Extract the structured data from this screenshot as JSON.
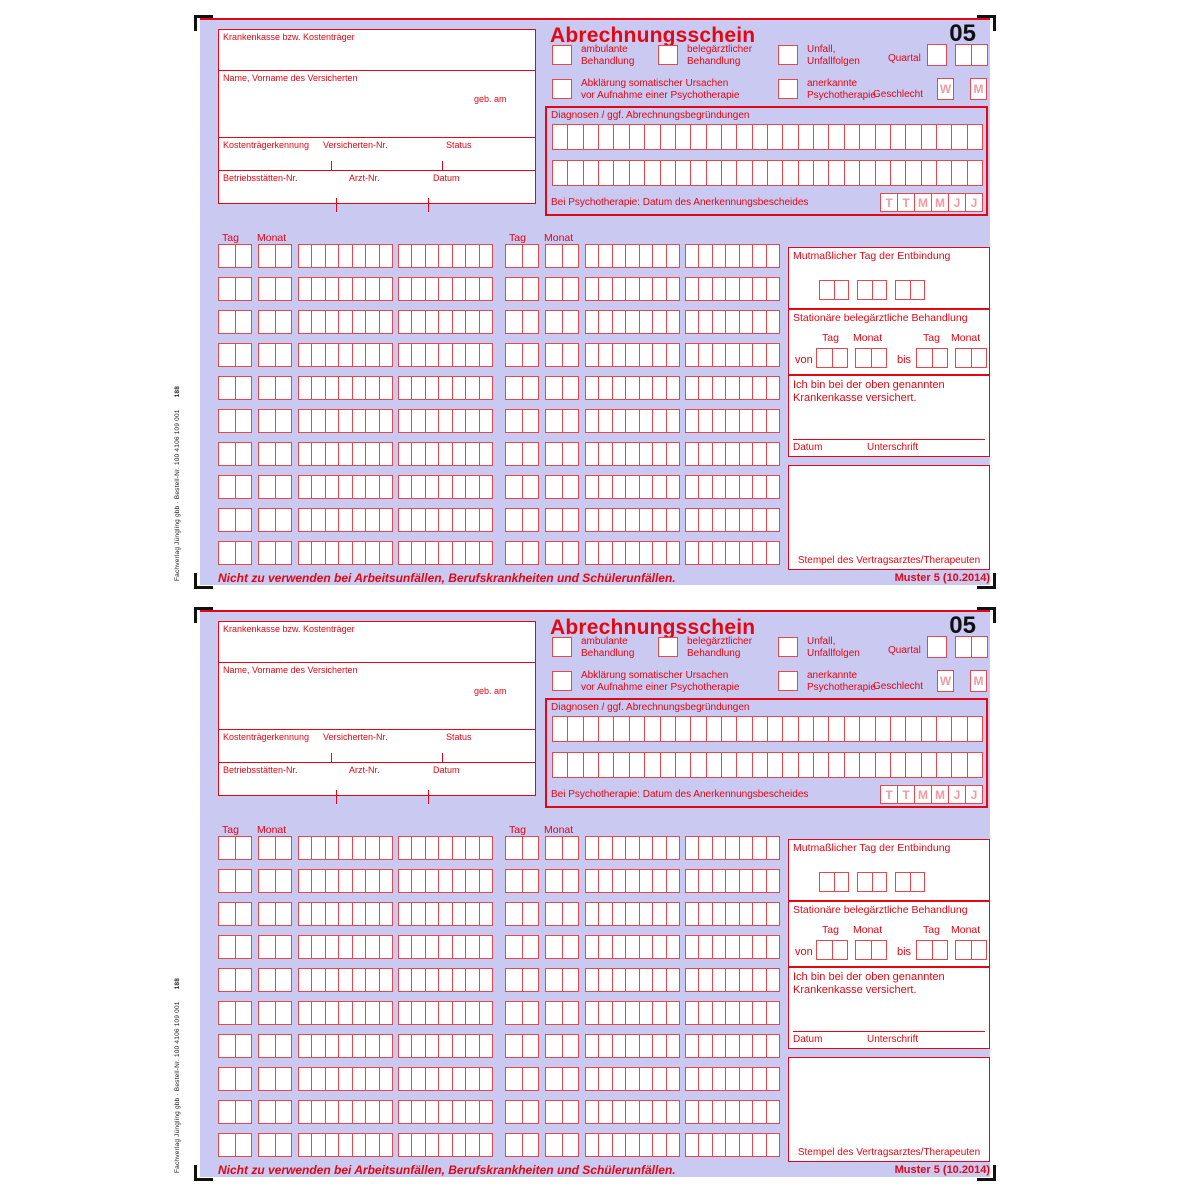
{
  "copies": 2,
  "colors": {
    "accent_red": "#e30613",
    "form_background": "#c9c9f1",
    "mark_black": "#111111",
    "field_white": "#ffffff",
    "pale_letter": "#f29aa2"
  },
  "side": {
    "publisher": "Fachverlag Jüngling gbb · Bestell-Nr. 100 4106 109 001",
    "code": "188"
  },
  "form": {
    "title": "Abrechnungsschein",
    "number": "05",
    "payer_box": {
      "label": "Krankenkasse bzw. Kostenträger"
    },
    "insured_box": {
      "label": "Name, Vorname des Versicherten",
      "dob_label": "geb. am"
    },
    "id_row": {
      "payer_id": "Kostenträgerkennung",
      "insured_no": "Versicherten-Nr.",
      "status": "Status"
    },
    "practice_row": {
      "site_no": "Betriebsstätten-Nr.",
      "doctor_no": "Arzt-Nr.",
      "date": "Datum"
    },
    "checks": {
      "ambulant": "ambulante\nBehandlung",
      "beleg": "belegärztlicher\nBehandlung",
      "unfall": "Unfall,\nUnfallfolgen",
      "quartal": "Quartal",
      "abklaerung": "Abklärung somatischer Ursachen\nvor Aufnahme einer Psychotherapie",
      "anerkannt": "anerkannte\nPsychotherapie",
      "geschlecht": "Geschlecht",
      "w": "W",
      "m": "M"
    },
    "diagnoses": {
      "label": "Diagnosen / ggf. Abrechnungsbegründungen",
      "rows": 2,
      "cells_per_row": 28,
      "psy_label": "Bei Psychotherapie: Datum des Anerkennungsbescheides",
      "date_letters": [
        "T",
        "T",
        "M",
        "M",
        "J",
        "J"
      ]
    },
    "grid": {
      "tag_label": "Tag",
      "monat_label": "Monat",
      "rows": 10,
      "halves": 2,
      "date_cells": 2,
      "code_groups": 2,
      "code_cells": 7
    },
    "right": {
      "entbindung": {
        "label": "Mutmaßlicher Tag der Entbindung"
      },
      "stationaer": {
        "label": "Stationäre belegärztliche Behandlung",
        "tag": "Tag",
        "monat": "Monat",
        "von": "von",
        "bis": "bis"
      },
      "versichert": {
        "text": "Ich bin bei der oben genannten\nKrankenkasse versichert.",
        "datum": "Datum",
        "unterschrift": "Unterschrift"
      },
      "stempel": {
        "label": "Stempel des Vertragsarztes/Therapeuten"
      }
    },
    "footer": {
      "warning": "Nicht zu verwenden bei Arbeitsunfällen, Berufskrankheiten und Schülerunfällen.",
      "muster": "Muster 5 (10.2014)"
    }
  }
}
